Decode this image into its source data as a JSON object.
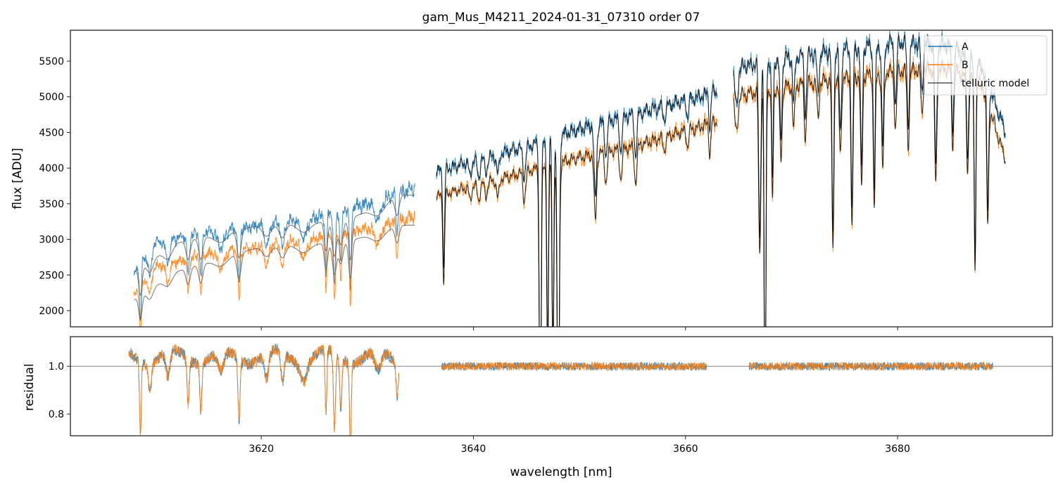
{
  "chart_data": [
    {
      "type": "line",
      "panel": "flux",
      "title": "gam_Mus_M4211_2024-01-31_07310  order 07",
      "ylabel": "flux [ADU]",
      "xlim": [
        3602.0,
        3694.6
      ],
      "ylim": [
        1773,
        5934
      ],
      "yticks": [
        2000,
        2500,
        3000,
        3500,
        4000,
        4500,
        5000,
        5500
      ],
      "xticks": [
        3620,
        3640,
        3660,
        3680
      ],
      "legend": {
        "placement": "top-right",
        "entries": [
          "A",
          "B",
          "telluric model"
        ]
      },
      "colors": {
        "A": "#1f77b4",
        "B": "#ff7f0e",
        "telluric model": "#000000"
      },
      "segments": [
        {
          "x": [
            3608.0,
            3634.5
          ],
          "A": [
            [
              3608,
              2500
            ],
            [
              3610,
              2950
            ],
            [
              3615,
              3100
            ],
            [
              3620,
              3200
            ],
            [
              3625,
              3300
            ],
            [
              3630,
              3500
            ],
            [
              3634.5,
              3720
            ]
          ],
          "B": [
            [
              3608,
              2200
            ],
            [
              3610,
              2620
            ],
            [
              3615,
              2800
            ],
            [
              3620,
              2900
            ],
            [
              3625,
              3000
            ],
            [
              3630,
              3150
            ],
            [
              3634.5,
              3320
            ]
          ],
          "model_A": [
            [
              3608,
              2550
            ],
            [
              3612,
              2950
            ],
            [
              3620,
              3200
            ],
            [
              3628,
              3260
            ],
            [
              3633,
              3620
            ]
          ],
          "model_B": [
            [
              3608,
              2150
            ],
            [
              3612,
              2550
            ],
            [
              3620,
              2900
            ],
            [
              3628,
              2960
            ],
            [
              3633,
              3200
            ]
          ]
        },
        {
          "x": [
            3636.5,
            3663.0
          ],
          "A": [
            [
              3636.5,
              3950
            ],
            [
              3640,
              4100
            ],
            [
              3645,
              4300
            ],
            [
              3650,
              4550
            ],
            [
              3655,
              4750
            ],
            [
              3660,
              4950
            ],
            [
              3663,
              5080
            ]
          ],
          "B": [
            [
              3636.5,
              3600
            ],
            [
              3640,
              3750
            ],
            [
              3645,
              3950
            ],
            [
              3650,
              4150
            ],
            [
              3655,
              4300
            ],
            [
              3660,
              4520
            ],
            [
              3663,
              4650
            ]
          ]
        },
        {
          "x": [
            3664.5,
            3690.2
          ],
          "A": [
            [
              3664.5,
              5400
            ],
            [
              3670,
              5560
            ],
            [
              3675,
              5660
            ],
            [
              3680,
              5760
            ],
            [
              3685,
              5720
            ],
            [
              3688,
              5400
            ],
            [
              3690.2,
              4500
            ]
          ],
          "B": [
            [
              3664.5,
              5000
            ],
            [
              3670,
              5160
            ],
            [
              3675,
              5260
            ],
            [
              3680,
              5360
            ],
            [
              3685,
              5400
            ],
            [
              3688,
              5150
            ],
            [
              3690.2,
              4100
            ]
          ]
        }
      ],
      "stellar_lines": [
        [
          3608.6,
          0.3,
          0.08
        ],
        [
          3609.5,
          0.12,
          0.15
        ],
        [
          3611.2,
          0.1,
          0.2
        ],
        [
          3613.1,
          0.18,
          0.1
        ],
        [
          3614.3,
          0.2,
          0.1
        ],
        [
          3616.2,
          0.08,
          0.3
        ],
        [
          3617.9,
          0.25,
          0.1
        ],
        [
          3620.5,
          0.1,
          0.2
        ],
        [
          3622.0,
          0.12,
          0.15
        ],
        [
          3624.0,
          0.08,
          0.3
        ],
        [
          3626.1,
          0.25,
          0.08
        ],
        [
          3626.9,
          0.3,
          0.1
        ],
        [
          3627.5,
          0.2,
          0.1
        ],
        [
          3628.4,
          0.35,
          0.08
        ],
        [
          3631.0,
          0.08,
          0.3
        ],
        [
          3632.8,
          0.15,
          0.1
        ]
      ],
      "telluric_lines": [
        [
          3637.2,
          0.35,
          0.08
        ],
        [
          3639.7,
          0.05,
          0.12
        ],
        [
          3640.5,
          0.06,
          0.12
        ],
        [
          3641.2,
          0.05,
          0.12
        ],
        [
          3642.3,
          0.07,
          0.12
        ],
        [
          3644.8,
          0.1,
          0.12
        ],
        [
          3646.3,
          1.0,
          0.09
        ],
        [
          3647.0,
          0.7,
          0.08
        ],
        [
          3647.5,
          0.7,
          0.08
        ],
        [
          3648.0,
          1.0,
          0.1
        ],
        [
          3651.5,
          0.22,
          0.12
        ],
        [
          3652.5,
          0.1,
          0.12
        ],
        [
          3653.9,
          0.1,
          0.12
        ],
        [
          3655.3,
          0.12,
          0.12
        ],
        [
          3658.0,
          0.04,
          0.12
        ],
        [
          3660.2,
          0.05,
          0.1
        ],
        [
          3662.3,
          0.1,
          0.08
        ],
        [
          3664.8,
          0.1,
          0.15
        ],
        [
          3667.0,
          0.45,
          0.1
        ],
        [
          3667.5,
          1.0,
          0.08
        ],
        [
          3668.2,
          0.3,
          0.08
        ],
        [
          3669.0,
          0.2,
          0.1
        ],
        [
          3670.2,
          0.12,
          0.1
        ],
        [
          3671.3,
          0.15,
          0.1
        ],
        [
          3672.5,
          0.1,
          0.1
        ],
        [
          3673.9,
          0.45,
          0.09
        ],
        [
          3674.6,
          0.2,
          0.1
        ],
        [
          3675.7,
          0.4,
          0.09
        ],
        [
          3676.6,
          0.3,
          0.09
        ],
        [
          3677.8,
          0.35,
          0.09
        ],
        [
          3678.6,
          0.25,
          0.1
        ],
        [
          3679.8,
          0.15,
          0.1
        ],
        [
          3681.0,
          0.2,
          0.1
        ],
        [
          3682.3,
          0.12,
          0.1
        ],
        [
          3683.6,
          0.3,
          0.1
        ],
        [
          3685.2,
          0.2,
          0.1
        ],
        [
          3686.6,
          0.25,
          0.1
        ],
        [
          3687.3,
          0.5,
          0.08
        ],
        [
          3688.5,
          0.35,
          0.09
        ]
      ]
    },
    {
      "type": "line",
      "panel": "residual",
      "xlabel": "wavelength [nm]",
      "ylabel": "residual",
      "xlim": [
        3602.0,
        3694.6
      ],
      "ylim": [
        0.709,
        1.124
      ],
      "yticks": [
        0.8,
        1.0
      ],
      "xticks": [
        3620,
        3640,
        3660,
        3680
      ],
      "reference_line": 1.0,
      "segments": [
        [
          3607.5,
          3633.0
        ],
        [
          3637.0,
          3662.0
        ],
        [
          3666.0,
          3689.0
        ]
      ]
    }
  ],
  "tick_labels": {
    "y_top": [
      "2000",
      "2500",
      "3000",
      "3500",
      "4000",
      "4500",
      "5000",
      "5500"
    ],
    "y_bottom": [
      "0.8",
      "1.0"
    ],
    "x": [
      "3620",
      "3640",
      "3660",
      "3680"
    ]
  },
  "title": "gam_Mus_M4211_2024-01-31_07310  order 07",
  "ylabel_top": "flux [ADU]",
  "ylabel_bottom": "residual",
  "xlabel": "wavelength [nm]",
  "legend": [
    "A",
    "B",
    "telluric model"
  ]
}
